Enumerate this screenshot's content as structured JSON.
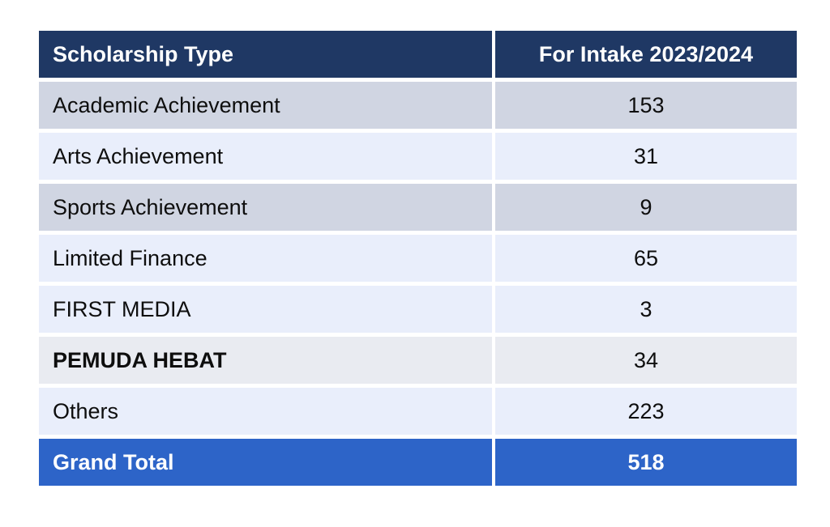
{
  "chart_data": {
    "type": "table",
    "columns": [
      "Scholarship Type",
      "For Intake 2023/2024"
    ],
    "rows": [
      [
        "Academic Achievement",
        "153"
      ],
      [
        "Arts Achievement",
        "31"
      ],
      [
        "Sports Achievement",
        "9"
      ],
      [
        "Limited Finance",
        "65"
      ],
      [
        "FIRST MEDIA",
        "3"
      ],
      [
        "PEMUDA HEBAT",
        "34"
      ],
      [
        "Others",
        "223"
      ]
    ],
    "footer": [
      "Grand Total",
      "518"
    ]
  },
  "colors": {
    "header_bg": "#1f3864",
    "header_text": "#ffffff",
    "row_gray": "#d0d5e2",
    "row_light_blue": "#e9eefb",
    "row_muted_gray": "#e9ebf1",
    "total_bg": "#2d64c8",
    "total_text": "#ffffff",
    "body_text": "#0e0e0e",
    "gutter": "#ffffff"
  }
}
